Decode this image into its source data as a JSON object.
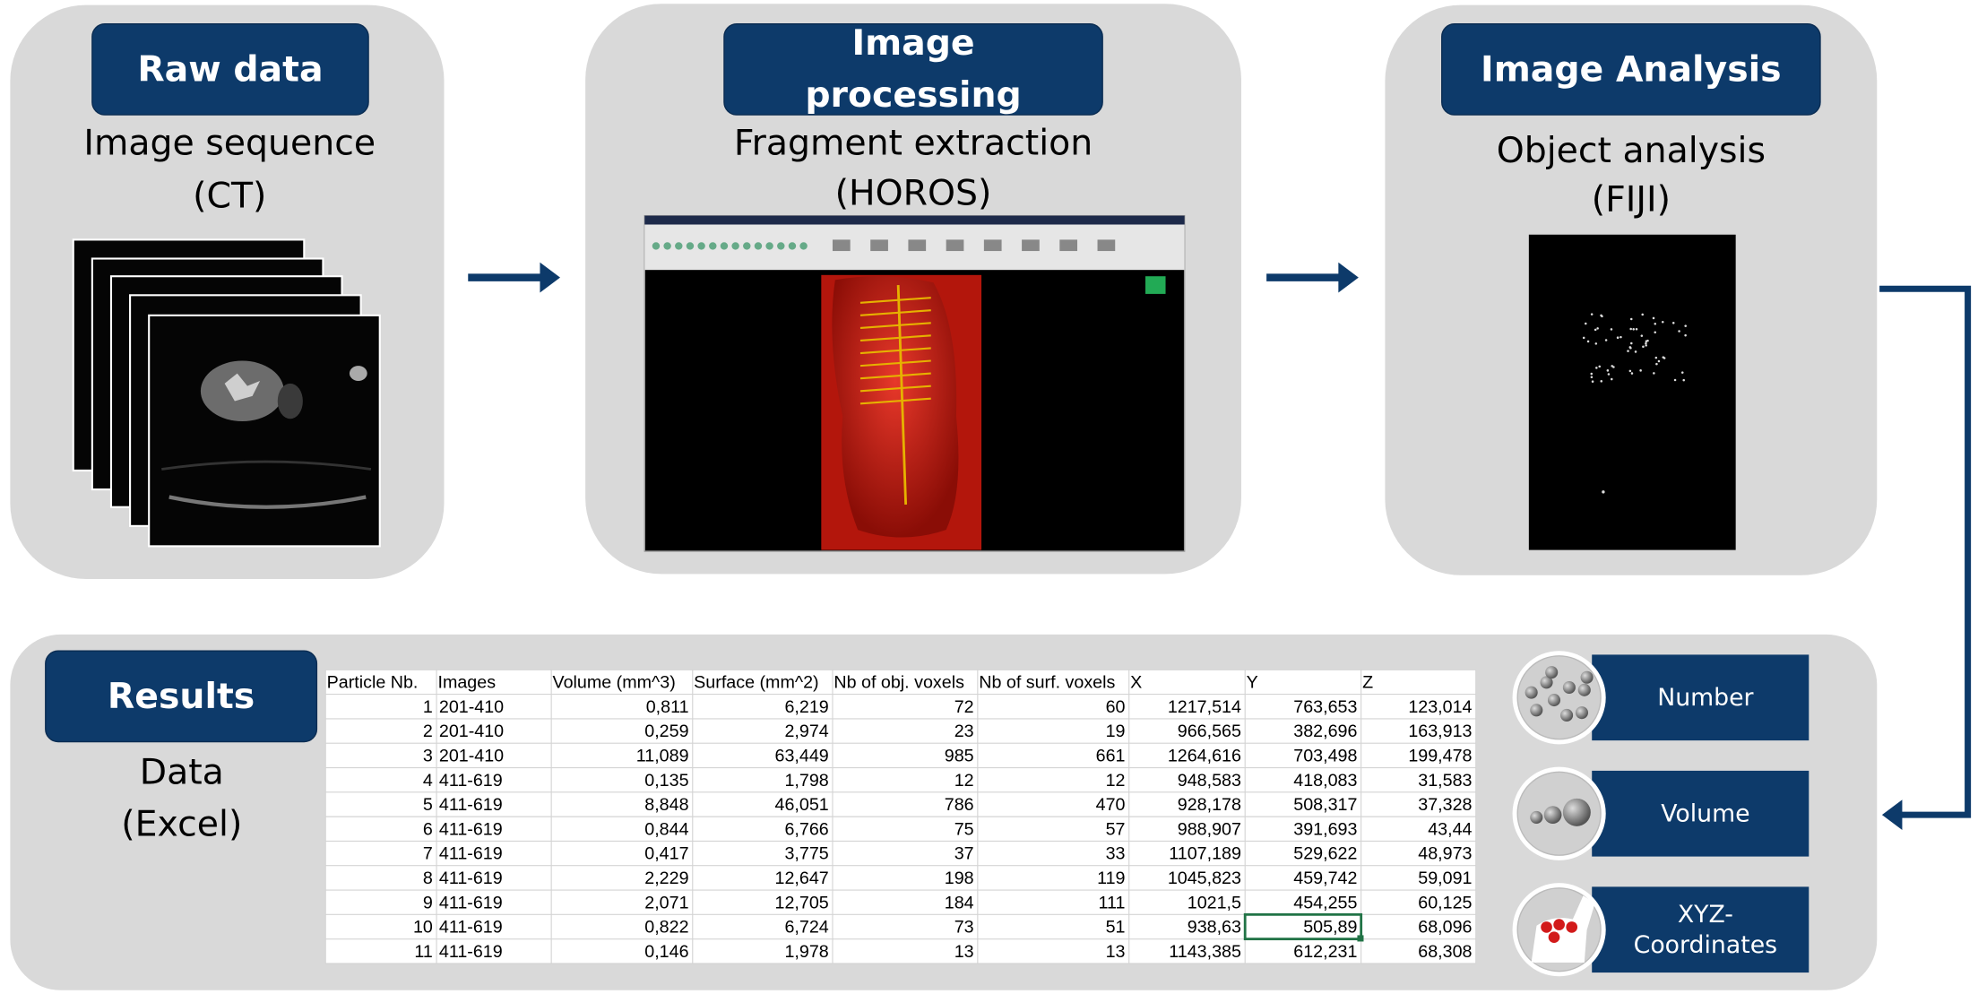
{
  "panels": [
    {
      "header": [
        "Raw data"
      ],
      "lines": [
        "Image sequence",
        "(CT)"
      ]
    },
    {
      "header": [
        "Image",
        "processing"
      ],
      "lines": [
        "Fragment extraction",
        "(HOROS)"
      ]
    },
    {
      "header": [
        "Image Analysis"
      ],
      "lines": [
        "Object analysis",
        "(FIJI)"
      ]
    },
    {
      "header": [
        "Results"
      ],
      "lines": [
        "Data",
        "(Excel)"
      ]
    }
  ],
  "table": {
    "columns": [
      "Particle Nb.",
      "Images",
      "Volume (mm^3)",
      "Surface (mm^2)",
      "Nb of obj. voxels",
      "Nb of surf. voxels",
      "X",
      "Y",
      "Z"
    ],
    "rows": [
      [
        "1",
        "201-410",
        "0,811",
        "6,219",
        "72",
        "60",
        "1217,514",
        "763,653",
        "123,014"
      ],
      [
        "2",
        "201-410",
        "0,259",
        "2,974",
        "23",
        "19",
        "966,565",
        "382,696",
        "163,913"
      ],
      [
        "3",
        "201-410",
        "11,089",
        "63,449",
        "985",
        "661",
        "1264,616",
        "703,498",
        "199,478"
      ],
      [
        "4",
        "411-619",
        "0,135",
        "1,798",
        "12",
        "12",
        "948,583",
        "418,083",
        "31,583"
      ],
      [
        "5",
        "411-619",
        "8,848",
        "46,051",
        "786",
        "470",
        "928,178",
        "508,317",
        "37,328"
      ],
      [
        "6",
        "411-619",
        "0,844",
        "6,766",
        "75",
        "57",
        "988,907",
        "391,693",
        "43,44"
      ],
      [
        "7",
        "411-619",
        "0,417",
        "3,775",
        "37",
        "33",
        "1107,189",
        "529,622",
        "48,973"
      ],
      [
        "8",
        "411-619",
        "2,229",
        "12,647",
        "198",
        "119",
        "1045,823",
        "459,742",
        "59,091"
      ],
      [
        "9",
        "411-619",
        "2,071",
        "12,705",
        "184",
        "111",
        "1021,5",
        "454,255",
        "60,125"
      ],
      [
        "10",
        "411-619",
        "0,822",
        "6,724",
        "73",
        "51",
        "938,63",
        "505,89",
        "68,096"
      ],
      [
        "11",
        "411-619",
        "0,146",
        "1,978",
        "13",
        "13",
        "1143,385",
        "612,231",
        "68,308"
      ]
    ]
  },
  "legend": [
    {
      "lines": [
        "Number"
      ]
    },
    {
      "lines": [
        "Volume"
      ]
    },
    {
      "lines": [
        "XYZ-",
        "Coordinates"
      ]
    }
  ]
}
